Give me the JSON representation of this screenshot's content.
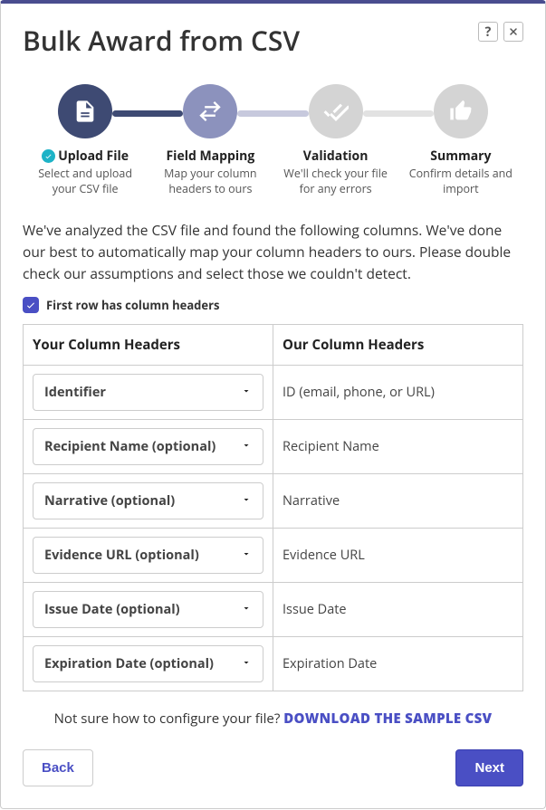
{
  "title": "Bulk Award from CSV",
  "header_icons": {
    "help": "?",
    "close": "×"
  },
  "palette": {
    "step_done": "#3e4a73",
    "step_active": "#8c92bd",
    "step_future": "#d4d4d4",
    "accent": "#4a4fc4",
    "check_badge": "#1db3c7"
  },
  "steps": [
    {
      "icon": "file-icon",
      "title": "Upload File",
      "desc": "Select and upload your CSV file",
      "completed": true
    },
    {
      "icon": "swap-icon",
      "title": "Field Mapping",
      "desc": "Map your column headers to ours",
      "completed": false
    },
    {
      "icon": "double-check-icon",
      "title": "Validation",
      "desc": "We'll check your file for any errors",
      "completed": false
    },
    {
      "icon": "thumbs-up-icon",
      "title": "Summary",
      "desc": "Confirm details and import",
      "completed": false
    }
  ],
  "intro": "We've analyzed the CSV file and found the following columns. We've done our best to automatically map your column headers to ours. Please double check our assumptions and select those we couldn't detect.",
  "checkbox": {
    "checked": true,
    "label": "First row has column headers"
  },
  "table": {
    "your_header": "Your Column Headers",
    "our_header": "Our Column Headers",
    "rows": [
      {
        "your": "Identifier",
        "our": "ID (email, phone, or URL)"
      },
      {
        "your": "Recipient Name (optional)",
        "our": "Recipient Name"
      },
      {
        "your": "Narrative (optional)",
        "our": "Narrative"
      },
      {
        "your": "Evidence URL (optional)",
        "our": "Evidence URL"
      },
      {
        "your": "Issue Date (optional)",
        "our": "Issue Date"
      },
      {
        "your": "Expiration Date (optional)",
        "our": "Expiration Date"
      }
    ]
  },
  "sample": {
    "prefix": "Not sure how to configure your file? ",
    "link": "DOWNLOAD THE SAMPLE CSV"
  },
  "buttons": {
    "back": "Back",
    "next": "Next"
  }
}
